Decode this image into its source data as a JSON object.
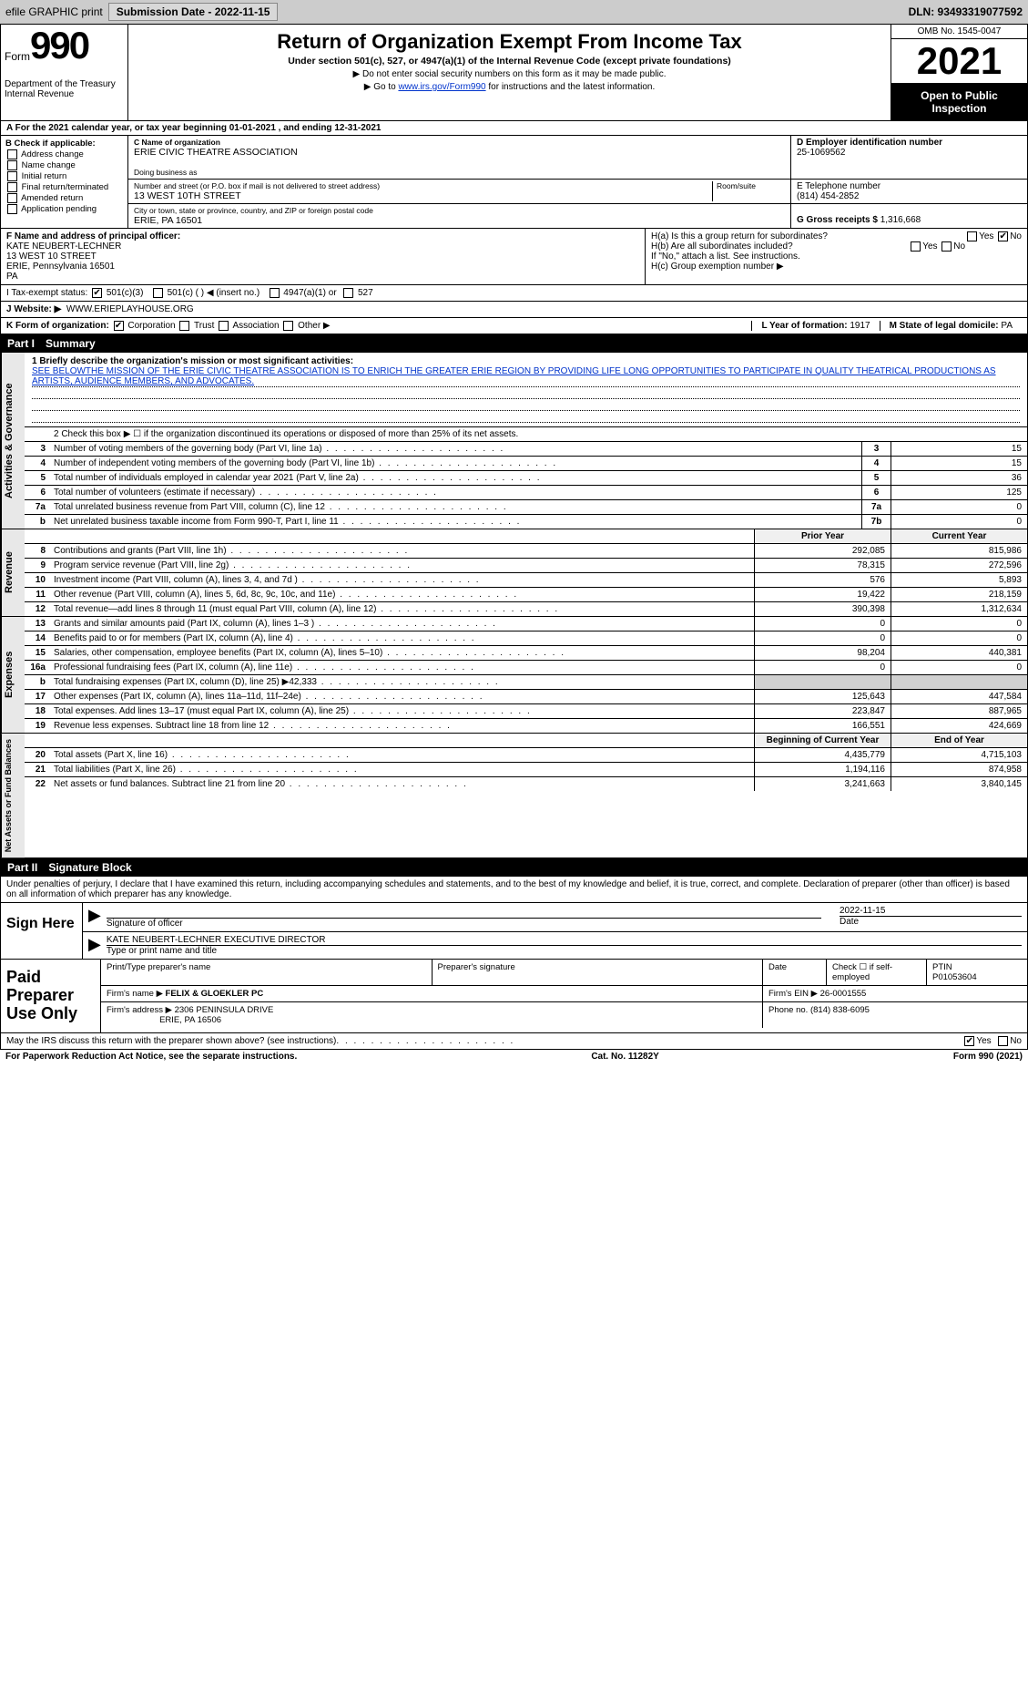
{
  "topbar": {
    "efile": "efile GRAPHIC print",
    "submission_btn": "Submission Date - 2022-11-15",
    "dln": "DLN: 93493319077592"
  },
  "header": {
    "form_word": "Form",
    "form_num": "990",
    "dept": "Department of the Treasury Internal Revenue",
    "title": "Return of Organization Exempt From Income Tax",
    "subtitle": "Under section 501(c), 527, or 4947(a)(1) of the Internal Revenue Code (except private foundations)",
    "note1": "▶ Do not enter social security numbers on this form as it may be made public.",
    "note2a": "▶ Go to ",
    "note2_link": "www.irs.gov/Form990",
    "note2b": " for instructions and the latest information.",
    "omb": "OMB No. 1545-0047",
    "year": "2021",
    "public": "Open to Public Inspection"
  },
  "rowA": "A For the 2021 calendar year, or tax year beginning 01-01-2021   , and ending 12-31-2021",
  "colB": {
    "hdr": "B Check if applicable:",
    "items": [
      "Address change",
      "Name change",
      "Initial return",
      "Final return/terminated",
      "Amended return",
      "Application pending"
    ]
  },
  "colC": {
    "c_lbl": "C Name of organization",
    "c_val": "ERIE CIVIC THEATRE ASSOCIATION",
    "dba_lbl": "Doing business as",
    "dba_val": "",
    "street_lbl": "Number and street (or P.O. box if mail is not delivered to street address)",
    "room_lbl": "Room/suite",
    "street_val": "13 WEST 10TH STREET",
    "city_lbl": "City or town, state or province, country, and ZIP or foreign postal code",
    "city_val": "ERIE, PA  16501"
  },
  "colD": {
    "d_lbl": "D Employer identification number",
    "d_val": "25-1069562",
    "e_lbl": "E Telephone number",
    "e_val": "(814) 454-2852",
    "g_lbl": "G Gross receipts $",
    "g_val": "1,316,668"
  },
  "rowF": {
    "lbl": "F  Name and address of principal officer:",
    "name": "KATE NEUBERT-LECHNER",
    "addr1": "13 WEST 10 STREET",
    "addr2": "ERIE, Pennsylvania  16501",
    "addr3": "PA"
  },
  "rowH": {
    "ha": "H(a)  Is this a group return for subordinates?",
    "hb": "H(b)  Are all subordinates included?",
    "hb_note": "If \"No,\" attach a list. See instructions.",
    "hc": "H(c)  Group exemption number ▶",
    "yes": "Yes",
    "no": "No"
  },
  "rowI": {
    "lbl": "I   Tax-exempt status:",
    "opts": [
      "501(c)(3)",
      "501(c) (  ) ◀ (insert no.)",
      "4947(a)(1) or",
      "527"
    ]
  },
  "rowJ": {
    "lbl": "J   Website: ▶",
    "val": "WWW.ERIEPLAYHOUSE.ORG"
  },
  "rowK": {
    "lbl": "K Form of organization:",
    "opts": [
      "Corporation",
      "Trust",
      "Association",
      "Other ▶"
    ],
    "l_lbl": "L Year of formation:",
    "l_val": "1917",
    "m_lbl": "M State of legal domicile:",
    "m_val": "PA"
  },
  "part1": {
    "num": "Part I",
    "title": "Summary"
  },
  "governance": {
    "vtab": "Activities & Governance",
    "line1_lbl": "1  Briefly describe the organization's mission or most significant activities:",
    "line1_val": "SEE BELOWTHE MISSION OF THE ERIE CIVIC THEATRE ASSOCIATION IS TO ENRICH THE GREATER ERIE REGION BY PROVIDING LIFE LONG OPPORTUNITIES TO PARTICIPATE IN QUALITY THEATRICAL PRODUCTIONS AS ARTISTS, AUDIENCE MEMBERS, AND ADVOCATES.",
    "line2": "2   Check this box ▶ ☐  if the organization discontinued its operations or disposed of more than 25% of its net assets.",
    "rows": [
      {
        "n": "3",
        "d": "Number of voting members of the governing body (Part VI, line 1a)",
        "box": "3",
        "v": "15"
      },
      {
        "n": "4",
        "d": "Number of independent voting members of the governing body (Part VI, line 1b)",
        "box": "4",
        "v": "15"
      },
      {
        "n": "5",
        "d": "Total number of individuals employed in calendar year 2021 (Part V, line 2a)",
        "box": "5",
        "v": "36"
      },
      {
        "n": "6",
        "d": "Total number of volunteers (estimate if necessary)",
        "box": "6",
        "v": "125"
      },
      {
        "n": "7a",
        "d": "Total unrelated business revenue from Part VIII, column (C), line 12",
        "box": "7a",
        "v": "0"
      },
      {
        "n": "b",
        "d": "Net unrelated business taxable income from Form 990-T, Part I, line 11",
        "box": "7b",
        "v": "0"
      }
    ]
  },
  "revenue": {
    "vtab": "Revenue",
    "hdr_prior": "Prior Year",
    "hdr_curr": "Current Year",
    "rows": [
      {
        "n": "8",
        "d": "Contributions and grants (Part VIII, line 1h)",
        "p": "292,085",
        "c": "815,986"
      },
      {
        "n": "9",
        "d": "Program service revenue (Part VIII, line 2g)",
        "p": "78,315",
        "c": "272,596"
      },
      {
        "n": "10",
        "d": "Investment income (Part VIII, column (A), lines 3, 4, and 7d )",
        "p": "576",
        "c": "5,893"
      },
      {
        "n": "11",
        "d": "Other revenue (Part VIII, column (A), lines 5, 6d, 8c, 9c, 10c, and 11e)",
        "p": "19,422",
        "c": "218,159"
      },
      {
        "n": "12",
        "d": "Total revenue—add lines 8 through 11 (must equal Part VIII, column (A), line 12)",
        "p": "390,398",
        "c": "1,312,634"
      }
    ]
  },
  "expenses": {
    "vtab": "Expenses",
    "rows": [
      {
        "n": "13",
        "d": "Grants and similar amounts paid (Part IX, column (A), lines 1–3 )",
        "p": "0",
        "c": "0"
      },
      {
        "n": "14",
        "d": "Benefits paid to or for members (Part IX, column (A), line 4)",
        "p": "0",
        "c": "0"
      },
      {
        "n": "15",
        "d": "Salaries, other compensation, employee benefits (Part IX, column (A), lines 5–10)",
        "p": "98,204",
        "c": "440,381"
      },
      {
        "n": "16a",
        "d": "Professional fundraising fees (Part IX, column (A), line 11e)",
        "p": "0",
        "c": "0"
      },
      {
        "n": "b",
        "d": "Total fundraising expenses (Part IX, column (D), line 25) ▶42,333",
        "p": "",
        "c": "",
        "shade": true
      },
      {
        "n": "17",
        "d": "Other expenses (Part IX, column (A), lines 11a–11d, 11f–24e)",
        "p": "125,643",
        "c": "447,584"
      },
      {
        "n": "18",
        "d": "Total expenses. Add lines 13–17 (must equal Part IX, column (A), line 25)",
        "p": "223,847",
        "c": "887,965"
      },
      {
        "n": "19",
        "d": "Revenue less expenses. Subtract line 18 from line 12",
        "p": "166,551",
        "c": "424,669"
      }
    ]
  },
  "netassets": {
    "vtab": "Net Assets or Fund Balances",
    "hdr_beg": "Beginning of Current Year",
    "hdr_end": "End of Year",
    "rows": [
      {
        "n": "20",
        "d": "Total assets (Part X, line 16)",
        "p": "4,435,779",
        "c": "4,715,103"
      },
      {
        "n": "21",
        "d": "Total liabilities (Part X, line 26)",
        "p": "1,194,116",
        "c": "874,958"
      },
      {
        "n": "22",
        "d": "Net assets or fund balances. Subtract line 21 from line 20",
        "p": "3,241,663",
        "c": "3,840,145"
      }
    ]
  },
  "part2": {
    "num": "Part II",
    "title": "Signature Block"
  },
  "sig": {
    "decl": "Under penalties of perjury, I declare that I have examined this return, including accompanying schedules and statements, and to the best of my knowledge and belief, it is true, correct, and complete. Declaration of preparer (other than officer) is based on all information of which preparer has any knowledge.",
    "sign_here": "Sign Here",
    "sig_officer": "Signature of officer",
    "date": "Date",
    "date_val": "2022-11-15",
    "name_val": "KATE NEUBERT-LECHNER  EXECUTIVE DIRECTOR",
    "name_lbl": "Type or print name and title"
  },
  "paid": {
    "lbl": "Paid Preparer Use Only",
    "h1": "Print/Type preparer's name",
    "h2": "Preparer's signature",
    "h3": "Date",
    "h4": "Check ☐ if self-employed",
    "h5": "PTIN",
    "ptin": "P01053604",
    "firm_lbl": "Firm's name    ▶",
    "firm_val": "FELIX & GLOEKLER PC",
    "ein_lbl": "Firm's EIN ▶",
    "ein_val": "26-0001555",
    "addr_lbl": "Firm's address ▶",
    "addr_val1": "2306 PENINSULA DRIVE",
    "addr_val2": "ERIE, PA  16506",
    "phone_lbl": "Phone no.",
    "phone_val": "(814) 838-6095"
  },
  "footer": {
    "q": "May the IRS discuss this return with the preparer shown above? (see instructions)",
    "yes": "Yes",
    "no": "No"
  },
  "bottom": {
    "l": "For Paperwork Reduction Act Notice, see the separate instructions.",
    "m": "Cat. No. 11282Y",
    "r": "Form 990 (2021)"
  }
}
